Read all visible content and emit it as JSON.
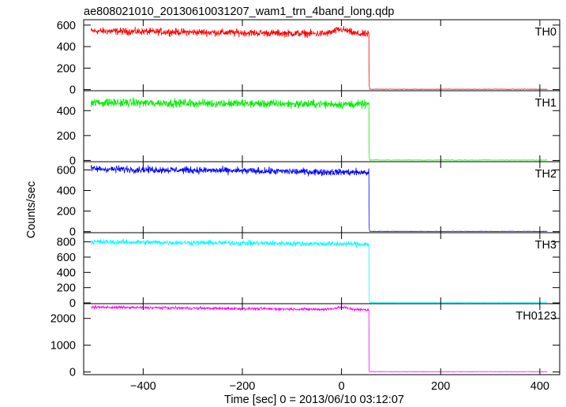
{
  "chart_data": {
    "type": "line",
    "title": "ae808021010_20130610031207_wam1_trn_4band_long.qdp",
    "xlabel": "Time [sec] 0 = 2013/06/10 03:12:07",
    "ylabel": "Counts/sec",
    "xlim": [
      -520,
      440
    ],
    "x_ticks": [
      -400,
      -200,
      0,
      200,
      400
    ],
    "x_tick_labels": [
      "−400",
      "−200",
      "0",
      "200",
      "400"
    ],
    "drop_time": 55,
    "x_start": -505,
    "x_end": 415,
    "grid": false,
    "panels": [
      {
        "name": "TH0",
        "color": "#ff0000",
        "ylim": [
          -10,
          650
        ],
        "y_ticks": [
          0,
          200,
          400,
          600
        ],
        "y_tick_labels": [
          "0",
          "200",
          "400",
          "600"
        ],
        "level_before": 520,
        "level_start": 545,
        "level_end": 515,
        "bump_at": 0,
        "bump": 40,
        "noise": 30,
        "level_after": 4
      },
      {
        "name": "TH1",
        "color": "#00ee00",
        "ylim": [
          -10,
          560
        ],
        "y_ticks": [
          0,
          200,
          400
        ],
        "y_tick_labels": [
          "0",
          "200",
          "400"
        ],
        "level_before": 460,
        "level_start": 465,
        "level_end": 450,
        "bump_at": -10,
        "bump": 0,
        "noise": 30,
        "level_after": 3
      },
      {
        "name": "TH2",
        "color": "#0000ff",
        "ylim": [
          -10,
          680
        ],
        "y_ticks": [
          0,
          200,
          400,
          600
        ],
        "y_tick_labels": [
          "0",
          "200",
          "400",
          "600"
        ],
        "level_before": 590,
        "level_start": 610,
        "level_end": 575,
        "bump_at": -90,
        "bump": 0,
        "noise": 30,
        "level_after": 3
      },
      {
        "name": "TH3",
        "color": "#00ffff",
        "ylim": [
          -10,
          920
        ],
        "y_ticks": [
          0,
          200,
          400,
          600,
          800
        ],
        "y_tick_labels": [
          "0",
          "200",
          "400",
          "600",
          "800"
        ],
        "level_before": 790,
        "level_start": 800,
        "level_end": 770,
        "bump_at": 0,
        "bump": 0,
        "noise": 30,
        "level_after": 3
      },
      {
        "name": "TH0123",
        "color": "#ff00ff",
        "ylim": [
          -100,
          2550
        ],
        "y_ticks": [
          0,
          1000,
          2000
        ],
        "y_tick_labels": [
          "0",
          "1000",
          "2000"
        ],
        "level_before": 2350,
        "level_start": 2420,
        "level_end": 2320,
        "bump_at": 0,
        "bump": 80,
        "noise": 45,
        "level_after": 12
      }
    ]
  }
}
